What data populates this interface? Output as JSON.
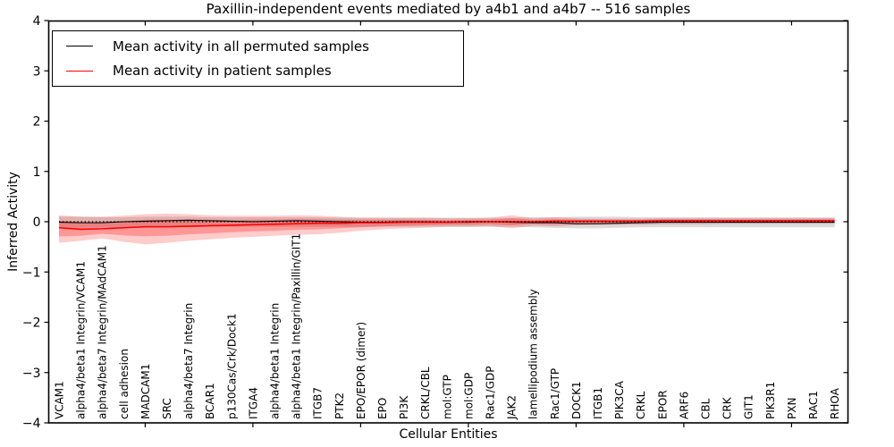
{
  "chart_data": {
    "type": "line",
    "title": "Paxillin-independent events mediated by a4b1 and a4b7 -- 516 samples",
    "xlabel": "Cellular Entities",
    "ylabel": "Inferred Activity",
    "ylim": [
      -4,
      4
    ],
    "yticks": [
      4,
      3,
      2,
      1,
      0,
      -1,
      -2,
      -3,
      -4
    ],
    "ytick_labels": [
      "4",
      "3",
      "2",
      "1",
      "0",
      "−1",
      "−2",
      "−3",
      "−4"
    ],
    "xtick_indices": [
      4,
      9,
      14,
      19,
      24,
      29,
      34
    ],
    "grid": false,
    "legend_position": "upper-left",
    "zero_line": true,
    "categories": [
      "VCAM1",
      "alpha4/beta1 Integrin/VCAM1",
      "alpha4/beta7 Integrin/MAdCAM1",
      "cell adhesion",
      "MADCAM1",
      "SRC",
      "alpha4/beta7 Integrin",
      "BCAR1",
      "p130Cas/Crk/Dock1",
      "ITGA4",
      "alpha4/beta1 Integrin",
      "alpha4/beta1 Integrin/Paxillin/GIT1",
      "ITGB7",
      "PTK2",
      "EPO/EPOR (dimer)",
      "EPO",
      "PI3K",
      "CRKL/CBL",
      "mol:GTP",
      "mol:GDP",
      "Rac1/GDP",
      "JAK2",
      "lamellipodium assembly",
      "Rac1/GTP",
      "DOCK1",
      "ITGB1",
      "PIK3CA",
      "CRKL",
      "EPOR",
      "ARF6",
      "CBL",
      "CRK",
      "GIT1",
      "PIK3R1",
      "PXN",
      "RAC1",
      "RHOA"
    ],
    "series": [
      {
        "name": "Mean activity in all permuted samples",
        "color": "#000000",
        "width": 1.1,
        "values": [
          -0.01,
          -0.02,
          -0.02,
          0.0,
          0.01,
          0.02,
          0.03,
          0.02,
          0.01,
          0.0,
          0.01,
          0.02,
          0.01,
          0.0,
          -0.01,
          -0.01,
          0.0,
          0.0,
          -0.01,
          -0.01,
          0.0,
          -0.01,
          -0.02,
          -0.02,
          -0.04,
          -0.04,
          -0.03,
          -0.02,
          -0.01,
          -0.01,
          -0.01,
          -0.01,
          -0.01,
          -0.01,
          -0.01,
          -0.01,
          -0.01
        ]
      },
      {
        "name": "Mean activity in patient samples",
        "color": "#ff0000",
        "width": 1.6,
        "values": [
          -0.12,
          -0.15,
          -0.14,
          -0.12,
          -0.1,
          -0.1,
          -0.09,
          -0.08,
          -0.07,
          -0.06,
          -0.05,
          -0.04,
          -0.03,
          -0.03,
          -0.02,
          -0.02,
          -0.01,
          -0.01,
          -0.01,
          0.0,
          0.0,
          0.0,
          0.0,
          0.01,
          0.01,
          0.01,
          0.01,
          0.01,
          0.02,
          0.02,
          0.02,
          0.02,
          0.02,
          0.02,
          0.02,
          0.02,
          0.02
        ]
      }
    ],
    "bands": [
      {
        "name": "permuted-samples-std-band",
        "fill": "rgba(0,0,0,0.14)",
        "hi": [
          0.1,
          0.1,
          0.09,
          0.09,
          0.1,
          0.1,
          0.1,
          0.09,
          0.09,
          0.09,
          0.09,
          0.09,
          0.09,
          0.08,
          0.08,
          0.08,
          0.08,
          0.08,
          0.08,
          0.08,
          0.08,
          0.08,
          0.09,
          0.09,
          0.1,
          0.1,
          0.1,
          0.09,
          0.09,
          0.09,
          0.09,
          0.09,
          0.09,
          0.09,
          0.09,
          0.09,
          0.09
        ],
        "lo": [
          -0.12,
          -0.12,
          -0.11,
          -0.11,
          -0.12,
          -0.11,
          -0.11,
          -0.1,
          -0.1,
          -0.1,
          -0.1,
          -0.1,
          -0.1,
          -0.1,
          -0.1,
          -0.1,
          -0.1,
          -0.1,
          -0.1,
          -0.1,
          -0.1,
          -0.1,
          -0.11,
          -0.12,
          -0.13,
          -0.13,
          -0.12,
          -0.11,
          -0.11,
          -0.11,
          -0.11,
          -0.11,
          -0.11,
          -0.11,
          -0.11,
          -0.11,
          -0.11
        ]
      },
      {
        "name": "patient-samples-outer-band",
        "fill": "rgba(255,0,0,0.20)",
        "hi": [
          0.13,
          0.1,
          0.1,
          0.12,
          0.15,
          0.16,
          0.15,
          0.13,
          0.12,
          0.12,
          0.12,
          0.13,
          0.12,
          0.1,
          0.08,
          0.08,
          0.08,
          0.08,
          0.07,
          0.07,
          0.08,
          0.13,
          0.07,
          0.09,
          0.07,
          0.06,
          0.06,
          0.06,
          0.07,
          0.07,
          0.07,
          0.07,
          0.07,
          0.07,
          0.07,
          0.07,
          0.07
        ],
        "lo": [
          -0.42,
          -0.38,
          -0.33,
          -0.4,
          -0.45,
          -0.42,
          -0.38,
          -0.35,
          -0.32,
          -0.3,
          -0.28,
          -0.26,
          -0.25,
          -0.22,
          -0.18,
          -0.15,
          -0.13,
          -0.12,
          -0.1,
          -0.1,
          -0.09,
          -0.13,
          -0.08,
          -0.09,
          -0.07,
          -0.06,
          -0.06,
          -0.06,
          -0.05,
          -0.05,
          -0.05,
          -0.04,
          -0.04,
          -0.04,
          -0.04,
          -0.04,
          -0.04
        ]
      },
      {
        "name": "patient-samples-inner-band",
        "fill": "rgba(255,0,0,0.26)",
        "hi": [
          0.02,
          -0.01,
          -0.01,
          0.01,
          0.04,
          0.04,
          0.04,
          0.04,
          0.03,
          0.04,
          0.04,
          0.05,
          0.05,
          0.04,
          0.04,
          0.04,
          0.04,
          0.04,
          0.03,
          0.04,
          0.04,
          0.07,
          0.04,
          0.05,
          0.04,
          0.04,
          0.04,
          0.04,
          0.05,
          0.05,
          0.05,
          0.05,
          0.05,
          0.05,
          0.05,
          0.05,
          0.05
        ],
        "lo": [
          -0.29,
          -0.28,
          -0.24,
          -0.27,
          -0.29,
          -0.28,
          -0.25,
          -0.23,
          -0.21,
          -0.19,
          -0.18,
          -0.16,
          -0.15,
          -0.13,
          -0.11,
          -0.09,
          -0.08,
          -0.07,
          -0.06,
          -0.06,
          -0.05,
          -0.07,
          -0.04,
          -0.05,
          -0.03,
          -0.03,
          -0.03,
          -0.03,
          -0.02,
          -0.02,
          -0.02,
          -0.02,
          -0.02,
          -0.02,
          -0.02,
          -0.02,
          -0.02
        ]
      }
    ]
  },
  "legend": {
    "items": [
      {
        "label": "Mean activity in all permuted samples",
        "color": "#000000"
      },
      {
        "label": "Mean activity in patient samples",
        "color": "#ff0000"
      }
    ]
  },
  "colors": {
    "frame": "#000000",
    "background": "#ffffff",
    "permuted_line": "#000000",
    "patient_line": "#ff0000"
  }
}
